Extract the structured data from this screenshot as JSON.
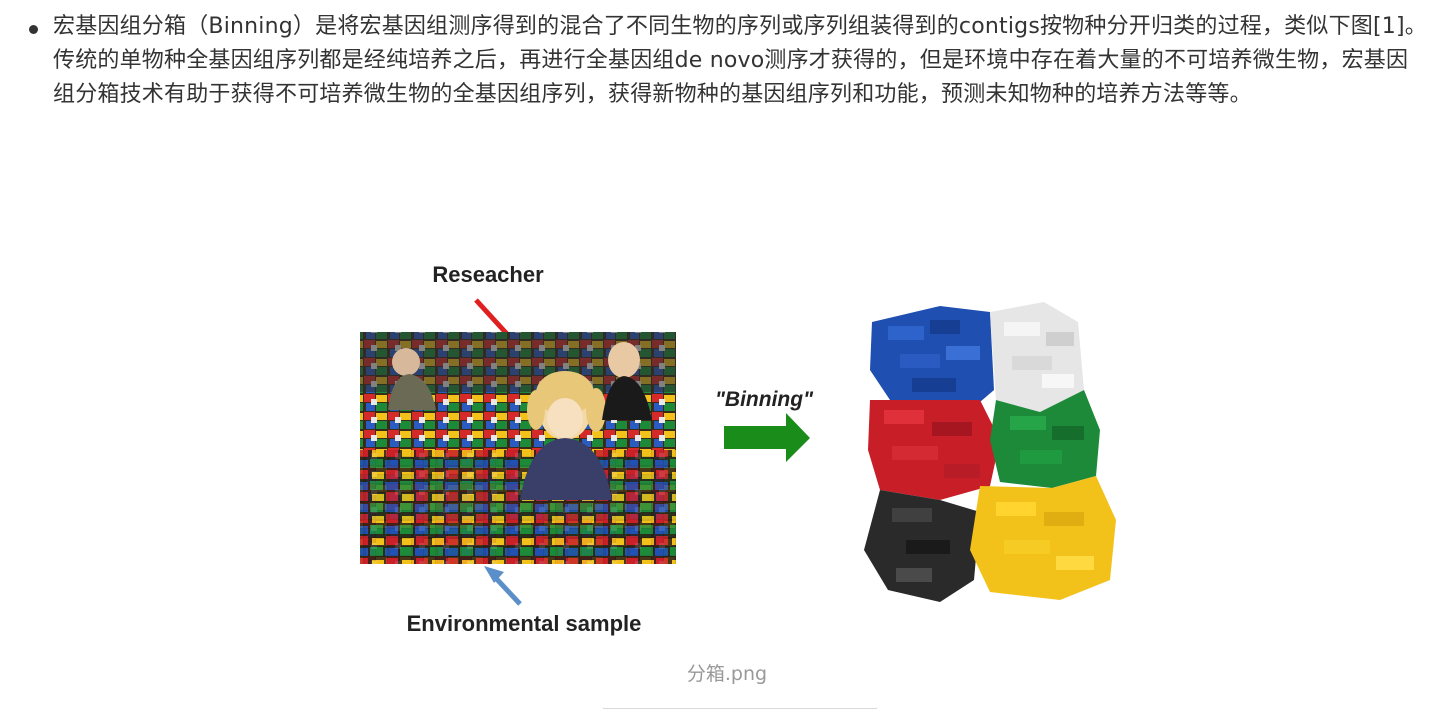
{
  "content": {
    "paragraph": "宏基因组分箱（Binning）是将宏基因组测序得到的混合了不同生物的序列或序列组装得到的contigs按物种分开归类的过程，类似下图[1]。传统的单物种全基因组序列都是经纯培养之后，再进行全基因组de novo测序才获得的，但是环境中存在着大量的不可培养微生物，宏基因组分箱技术有助于获得不可培养微生物的全基因组序列，获得新物种的基因组序列和功能，预测未知物种的培养方法等等。"
  },
  "figure": {
    "label_researcher": "Reseacher",
    "label_binning": "\"Binning\"",
    "label_sample": "Environmental sample",
    "colors": {
      "red_arrow": "#e02020",
      "blue_arrow": "#5b8fc9",
      "green_arrow": "#1a8c1a",
      "blue_bricks": "#1f4fb0",
      "white_bricks": "#e8e8e8",
      "red_bricks": "#c81e28",
      "green_bricks": "#1d8a3a",
      "black_bricks": "#2a2a2a",
      "yellow_bricks": "#f2c21b"
    }
  },
  "caption": {
    "filename": "分箱.png"
  }
}
